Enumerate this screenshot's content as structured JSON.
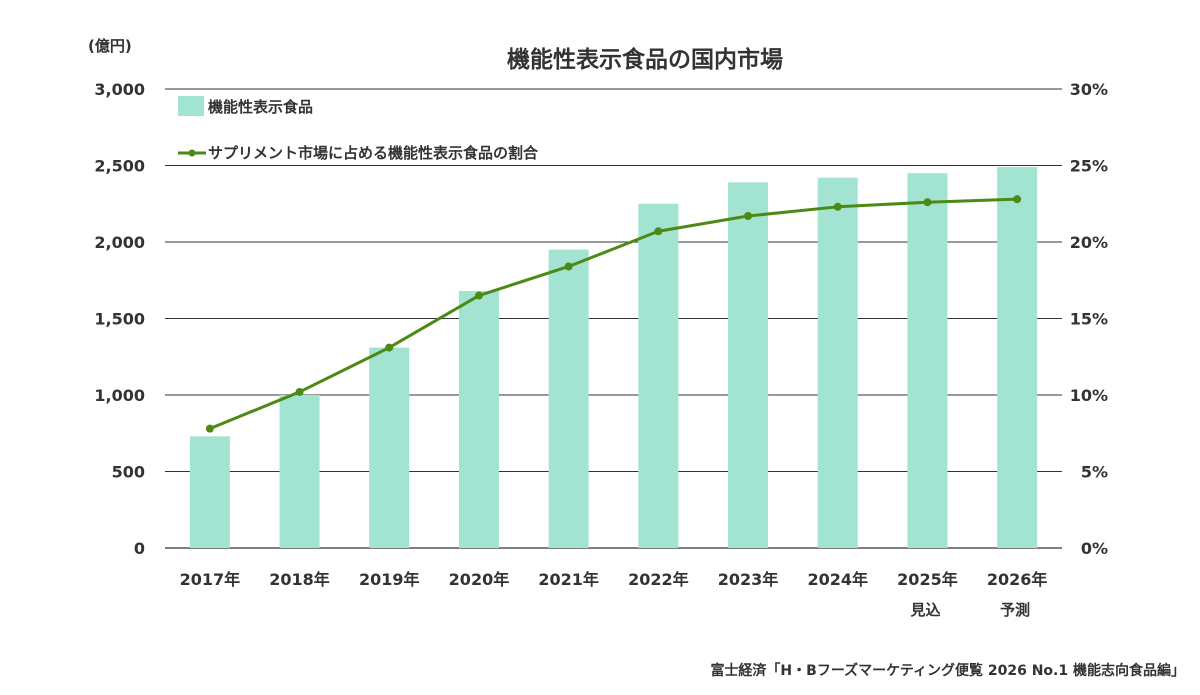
{
  "chart_data": {
    "type": "bar+line",
    "title": "機能性表示食品の国内市場",
    "y_unit_label": "(億円)",
    "categories": [
      "2017年",
      "2018年",
      "2019年",
      "2020年",
      "2021年",
      "2022年",
      "2023年",
      "2024年",
      "2025年",
      "2026年"
    ],
    "category_sublabels": [
      "",
      "",
      "",
      "",
      "",
      "",
      "",
      "",
      "見込",
      "予測"
    ],
    "y_left": {
      "min": 0,
      "max": 3000,
      "ticks": [
        0,
        500,
        1000,
        1500,
        2000,
        2500,
        3000
      ],
      "tick_labels": [
        "0",
        "500",
        "1,000",
        "1,500",
        "2,000",
        "2,500",
        "3,000"
      ]
    },
    "y_right": {
      "min": 0,
      "max": 30,
      "ticks": [
        0,
        5,
        10,
        15,
        20,
        25,
        30
      ],
      "tick_labels": [
        "0%",
        "5%",
        "10%",
        "15%",
        "20%",
        "25%",
        "30%"
      ]
    },
    "series": [
      {
        "name": "機能性表示食品",
        "type": "bar",
        "axis": "left",
        "color": "#a3e3d1",
        "values": [
          730,
          1000,
          1310,
          1680,
          1950,
          2250,
          2390,
          2420,
          2450,
          2490
        ]
      },
      {
        "name": "サプリメント市場に占める機能性表示食品の割合",
        "type": "line",
        "axis": "right",
        "color": "#4b8a14",
        "values": [
          7.8,
          10.2,
          13.1,
          16.5,
          18.4,
          20.7,
          21.7,
          22.3,
          22.6,
          22.8
        ]
      }
    ],
    "grid": true,
    "legend_position": "top-left"
  },
  "source": "富士経済「H・Bフーズマーケティング便覧 2026 No.1 機能志向食品編」",
  "colors": {
    "bar": "#a3e3d1",
    "line": "#4b8a14",
    "grid": "#333333"
  }
}
